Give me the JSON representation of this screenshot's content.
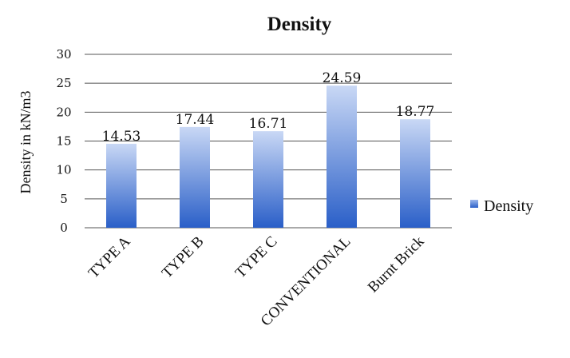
{
  "chart_data": {
    "type": "bar",
    "title": "Density",
    "ylabel": "Density in kN/m3",
    "xlabel": "",
    "categories": [
      "TYPE A",
      "TYPE B",
      "TYPE C",
      "CONVENTIONAL",
      "Burnt Brick"
    ],
    "series": [
      {
        "name": "Density",
        "values": [
          14.53,
          17.44,
          16.71,
          24.59,
          18.77
        ]
      }
    ],
    "data_labels": [
      "14.53",
      "17.44",
      "16.71",
      "24.59",
      "18.77"
    ],
    "ylim": [
      0,
      30
    ],
    "yticks": [
      "0",
      "5",
      "10",
      "15",
      "20",
      "25",
      "30"
    ],
    "grid": true,
    "legend_position": "right",
    "colors": {
      "bar_dark": "#2a5fc8",
      "bar_light": "#c9d8f5",
      "grid": "#555555"
    }
  }
}
